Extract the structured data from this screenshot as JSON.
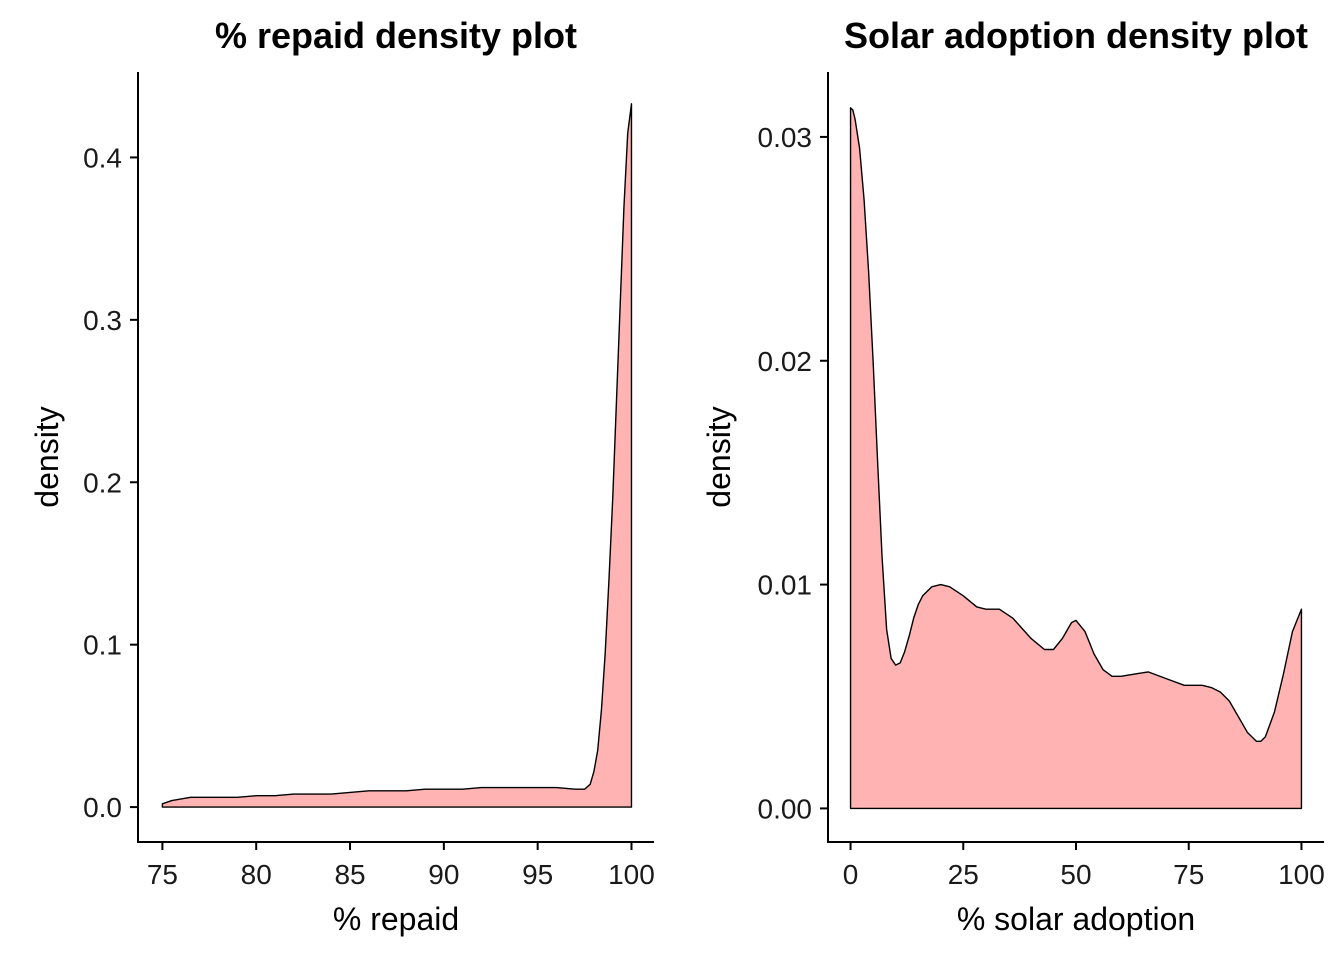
{
  "chart_data": [
    {
      "type": "area",
      "title": "% repaid density plot",
      "xlabel": "% repaid",
      "ylabel": "density",
      "xlim": [
        73.7,
        101.2
      ],
      "ylim": [
        -0.0215,
        0.4526
      ],
      "xticks": [
        75,
        80,
        85,
        90,
        95,
        100
      ],
      "xtick_labels": [
        "75",
        "80",
        "85",
        "90",
        "95",
        "100"
      ],
      "yticks": [
        0.0,
        0.1,
        0.2,
        0.3,
        0.4
      ],
      "ytick_labels": [
        "0.0",
        "0.1",
        "0.2",
        "0.3",
        "0.4"
      ],
      "fill": "#FFB3B3",
      "series": [
        {
          "x": [
            75,
            75.5,
            76,
            76.5,
            77,
            78,
            79,
            80,
            81,
            82,
            83,
            84,
            85,
            86,
            87,
            88,
            89,
            90,
            91,
            92,
            93,
            94,
            95,
            96,
            97,
            97.5,
            97.8,
            98.0,
            98.2,
            98.4,
            98.6,
            98.8,
            99.0,
            99.2,
            99.4,
            99.6,
            99.8,
            100
          ],
          "y": [
            0.002,
            0.004,
            0.005,
            0.006,
            0.006,
            0.006,
            0.006,
            0.007,
            0.007,
            0.008,
            0.008,
            0.008,
            0.009,
            0.01,
            0.01,
            0.01,
            0.011,
            0.011,
            0.011,
            0.012,
            0.012,
            0.012,
            0.012,
            0.012,
            0.011,
            0.011,
            0.014,
            0.022,
            0.035,
            0.06,
            0.095,
            0.14,
            0.19,
            0.25,
            0.31,
            0.37,
            0.415,
            0.433
          ]
        }
      ]
    },
    {
      "type": "area",
      "title": "Solar adoption density plot",
      "xlabel": "% solar adoption",
      "ylabel": "density",
      "xlim": [
        -5,
        105
      ],
      "ylim": [
        -0.0015,
        0.0329
      ],
      "xticks": [
        0,
        25,
        50,
        75,
        100
      ],
      "xtick_labels": [
        "0",
        "25",
        "50",
        "75",
        "100"
      ],
      "yticks": [
        0.0,
        0.01,
        0.02,
        0.03
      ],
      "ytick_labels": [
        "0.00",
        "0.01",
        "0.02",
        "0.03"
      ],
      "fill": "#FFB3B3",
      "series": [
        {
          "x": [
            0,
            0.5,
            1,
            2,
            3,
            4,
            5,
            6,
            7,
            8,
            9,
            10,
            11,
            12,
            13,
            14,
            15,
            16,
            18,
            20,
            22,
            25,
            28,
            30,
            33,
            36,
            40,
            43,
            45,
            47,
            49,
            50,
            52,
            54,
            56,
            58,
            60,
            63,
            66,
            70,
            74,
            78,
            80,
            82,
            84,
            86,
            88,
            90,
            91,
            92,
            94,
            96,
            98,
            100
          ],
          "y": [
            0.0313,
            0.0312,
            0.0308,
            0.0295,
            0.0272,
            0.024,
            0.02,
            0.0155,
            0.0112,
            0.008,
            0.0067,
            0.0064,
            0.0065,
            0.007,
            0.0077,
            0.0085,
            0.0091,
            0.0095,
            0.0099,
            0.01,
            0.0099,
            0.0095,
            0.009,
            0.0089,
            0.0089,
            0.0085,
            0.0076,
            0.0071,
            0.0071,
            0.0076,
            0.0083,
            0.0084,
            0.0079,
            0.0069,
            0.0062,
            0.0059,
            0.0059,
            0.006,
            0.0061,
            0.0058,
            0.0055,
            0.0055,
            0.0054,
            0.0052,
            0.0048,
            0.0041,
            0.0034,
            0.003,
            0.003,
            0.0032,
            0.0043,
            0.006,
            0.0079,
            0.0089
          ]
        }
      ]
    }
  ]
}
